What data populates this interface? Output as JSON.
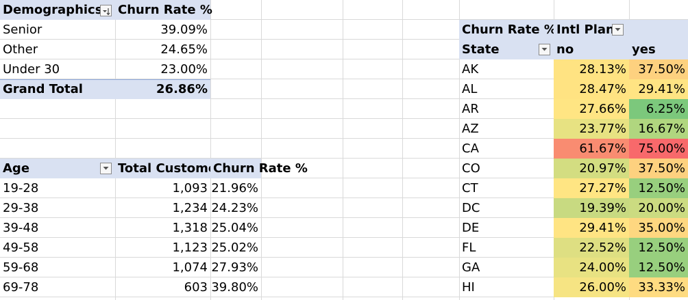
{
  "demographics_pivot": {
    "headers": {
      "row_label": "Demographics",
      "value": "Churn Rate %"
    },
    "rows": [
      {
        "label": "Senior",
        "value": "39.09%"
      },
      {
        "label": "Other",
        "value": "24.65%"
      },
      {
        "label": "Under 30",
        "value": "23.00%"
      }
    ],
    "grand_total": {
      "label": "Grand Total",
      "value": "26.86%"
    }
  },
  "age_pivot": {
    "headers": {
      "row_label": "Age",
      "total_customers": "Total Custome",
      "churn_rate": "Churn Rate %"
    },
    "rows": [
      {
        "age": "19-28",
        "total": "1,093",
        "rate": "21.96%"
      },
      {
        "age": "29-38",
        "total": "1,234",
        "rate": "24.23%"
      },
      {
        "age": "39-48",
        "total": "1,318",
        "rate": "25.04%"
      },
      {
        "age": "49-58",
        "total": "1,123",
        "rate": "25.02%"
      },
      {
        "age": "59-68",
        "total": "1,074",
        "rate": "27.93%"
      },
      {
        "age": "69-78",
        "total": "603",
        "rate": "39.80%"
      }
    ]
  },
  "state_pivot": {
    "headers": {
      "value": "Churn Rate %",
      "column_field": "Intl Plan",
      "row_field": "State",
      "col_no": "no",
      "col_yes": "yes"
    },
    "rows": [
      {
        "state": "AK",
        "no": "28.13%",
        "yes": "37.50%",
        "no_color": "#ffe382",
        "yes_color": "#fdd17f"
      },
      {
        "state": "AL",
        "no": "28.47%",
        "yes": "29.41%",
        "no_color": "#ffe382",
        "yes_color": "#ffe483"
      },
      {
        "state": "AR",
        "no": "27.66%",
        "yes": "6.25%",
        "no_color": "#ffe583",
        "yes_color": "#7cc87c"
      },
      {
        "state": "AZ",
        "no": "23.77%",
        "yes": "16.67%",
        "no_color": "#e7e282",
        "yes_color": "#b0d67f"
      },
      {
        "state": "CA",
        "no": "61.67%",
        "yes": "75.00%",
        "no_color": "#f98c71",
        "yes_color": "#f8696b"
      },
      {
        "state": "CO",
        "no": "20.97%",
        "yes": "37.50%",
        "no_color": "#d3dd81",
        "yes_color": "#fdd17f"
      },
      {
        "state": "CT",
        "no": "27.27%",
        "yes": "12.50%",
        "no_color": "#ffe583",
        "yes_color": "#98cf7e"
      },
      {
        "state": "DC",
        "no": "19.39%",
        "yes": "20.00%",
        "no_color": "#c8da81",
        "yes_color": "#cbdb81"
      },
      {
        "state": "DE",
        "no": "29.41%",
        "yes": "35.00%",
        "no_color": "#ffe483",
        "yes_color": "#fed780"
      },
      {
        "state": "FL",
        "no": "22.52%",
        "yes": "12.50%",
        "no_color": "#dedf82",
        "yes_color": "#98cf7e"
      },
      {
        "state": "GA",
        "no": "24.00%",
        "yes": "12.50%",
        "no_color": "#e8e282",
        "yes_color": "#98cf7e"
      },
      {
        "state": "HI",
        "no": "26.00%",
        "yes": "33.33%",
        "no_color": "#f6e483",
        "yes_color": "#fedb81"
      }
    ]
  },
  "colors": {
    "pivot_header": "#d9e1f2",
    "gridline": "#d9d9d9"
  },
  "icons": {
    "filter_dropdown": "dropdown-arrow-icon",
    "sorted_filter": "sort-filter-icon"
  }
}
